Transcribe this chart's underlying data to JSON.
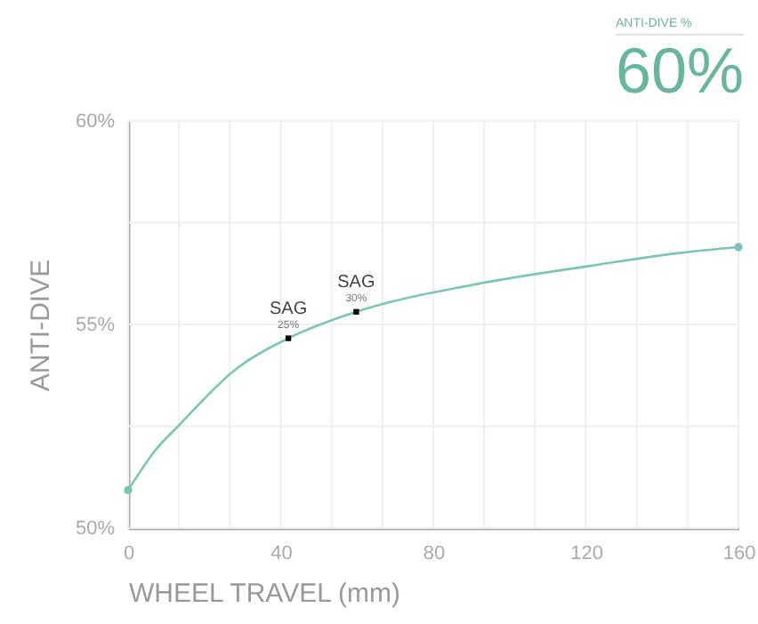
{
  "chart_data": {
    "type": "line",
    "title": "60%",
    "subtitle": "ANTI-DIVE  %",
    "xlabel": "WHEEL TRAVEL (mm)",
    "ylabel": "ANTI-DIVE",
    "xlim": [
      0,
      160
    ],
    "xticks": [
      0,
      {
        "value": 13.33,
        "label": null
      },
      {
        "value": 26.67,
        "label": null
      },
      40,
      {
        "value": 53.33,
        "label": null
      },
      {
        "value": 66.67,
        "label": null
      },
      80,
      {
        "value": 93.33,
        "label": null
      },
      {
        "value": 106.67,
        "label": null
      },
      120,
      {
        "value": 133.33,
        "label": null
      },
      {
        "value": 146.67,
        "label": null
      },
      160
    ],
    "ylim": [
      50,
      60
    ],
    "yticks": [
      {
        "value": 50,
        "label": "50%"
      },
      {
        "value": 52.5,
        "label": null
      },
      {
        "value": 55,
        "label": "55%"
      },
      {
        "value": 57.5,
        "label": null
      },
      {
        "value": 60,
        "label": "60%"
      }
    ],
    "grid": true,
    "series": [
      {
        "color": "#7ec4b4",
        "x": [
          0,
          7.5,
          13,
          28.5,
          42,
          59.8,
          90.7,
          121.9,
          145,
          160
        ],
        "values": [
          50.93,
          51.95,
          52.49,
          53.92,
          54.66,
          55.31,
          55.98,
          56.45,
          56.76,
          56.9
        ]
      },
      {
        "type": "scatter",
        "color": "#7ec4b4",
        "marker": "circle",
        "x": [
          0,
          160
        ],
        "values": [
          50.93,
          56.9
        ]
      },
      {
        "type": "scatter",
        "color": "#000000",
        "marker": "square",
        "x": [
          42,
          59.8
        ],
        "values": [
          54.66,
          55.31
        ]
      }
    ],
    "annotations": [
      "SAG",
      "25%",
      "SAG",
      "30%"
    ]
  }
}
